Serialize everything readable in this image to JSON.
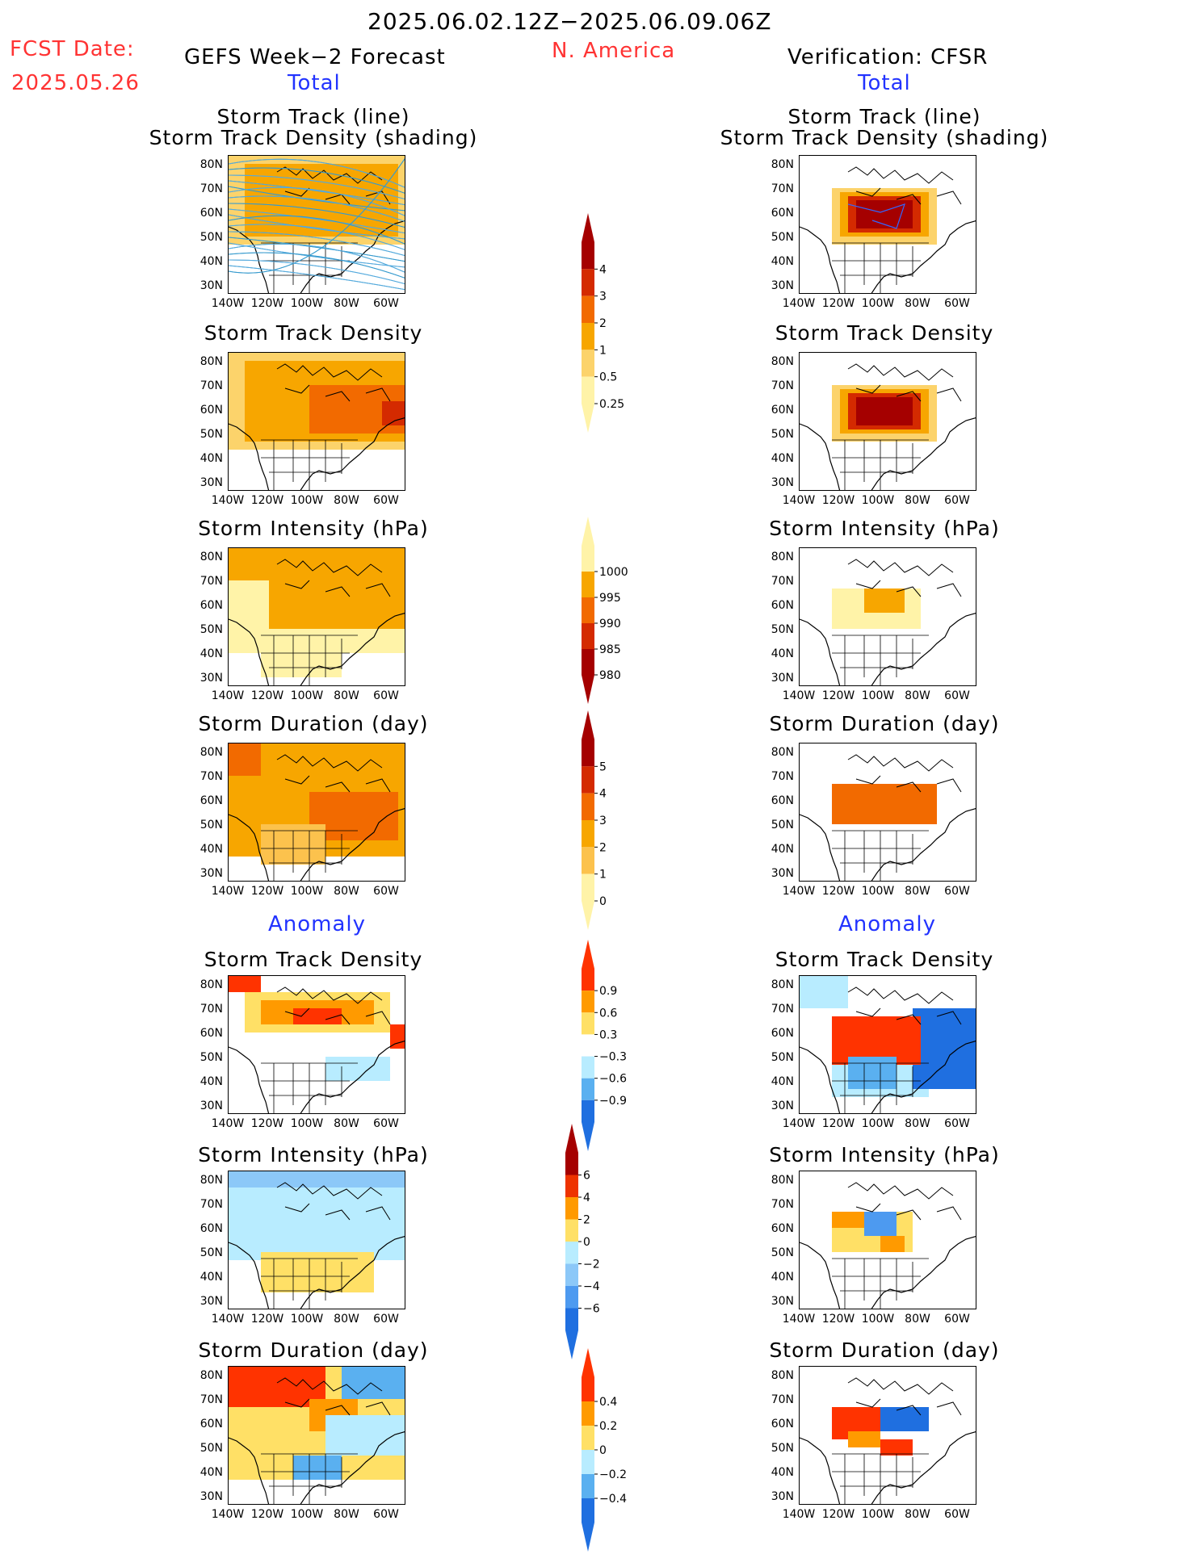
{
  "header": {
    "date_range": "2025.06.02.12Z−2025.06.09.06Z",
    "fcst_label": "FCST Date:",
    "fcst_date": "2025.05.26",
    "left_title": "GEFS Week−2 Forecast",
    "region": "N. America",
    "right_title": "Verification: CFSR",
    "total_left": "Total",
    "total_right": "Total",
    "anomaly_left": "Anomaly",
    "anomaly_right": "Anomaly"
  },
  "panel_titles": {
    "track_line": "Storm Track (line)",
    "track_density_shading": "Storm Track Density (shading)",
    "track_density": "Storm Track Density",
    "intensity": "Storm Intensity (hPa)",
    "duration": "Storm Duration (day)"
  },
  "axes": {
    "lat_labels": [
      "80N",
      "70N",
      "60N",
      "50N",
      "40N",
      "30N"
    ],
    "lon_labels": [
      "140W",
      "120W",
      "100W",
      "80W",
      "60W"
    ]
  },
  "colorbars": {
    "density": {
      "labels": [
        "4",
        "3",
        "2",
        "1",
        "0.5",
        "0.25"
      ],
      "colors": [
        "#a50000",
        "#d42a00",
        "#f26a00",
        "#f7a600",
        "#fcd36b",
        "#fff3a8"
      ]
    },
    "intensity": {
      "labels": [
        "1000",
        "995",
        "990",
        "985",
        "980"
      ],
      "colors": [
        "#fff3a8",
        "#f7a600",
        "#f26a00",
        "#d42a00",
        "#a50000"
      ]
    },
    "duration": {
      "labels": [
        "5",
        "4",
        "3",
        "2",
        "1",
        "0"
      ],
      "colors": [
        "#a50000",
        "#d42a00",
        "#f26a00",
        "#f7a600",
        "#fcc24d",
        "#fff3a8"
      ]
    },
    "density_anom": {
      "labels": [
        "0.9",
        "0.6",
        "0.3",
        "−0.3",
        "−0.6",
        "−0.9"
      ],
      "colors": [
        "#ff3300",
        "#ff9a00",
        "#ffe066",
        "#ffffff",
        "#b8ecff",
        "#5ab0f0",
        "#1f6fe0"
      ]
    },
    "intensity_anom": {
      "labels": [
        "6",
        "4",
        "2",
        "0",
        "−2",
        "−4",
        "−6"
      ],
      "colors": [
        "#a50000",
        "#ee3300",
        "#ff9a00",
        "#ffe066",
        "#b8ecff",
        "#8cc8f8",
        "#4d9af0",
        "#1f6fe0"
      ]
    },
    "duration_anom": {
      "labels": [
        "0.4",
        "0.2",
        "0",
        "−0.2",
        "−0.4"
      ],
      "colors": [
        "#ff3300",
        "#ff9a00",
        "#ffe066",
        "#b8ecff",
        "#5ab0f0",
        "#1f6fe0"
      ]
    }
  }
}
